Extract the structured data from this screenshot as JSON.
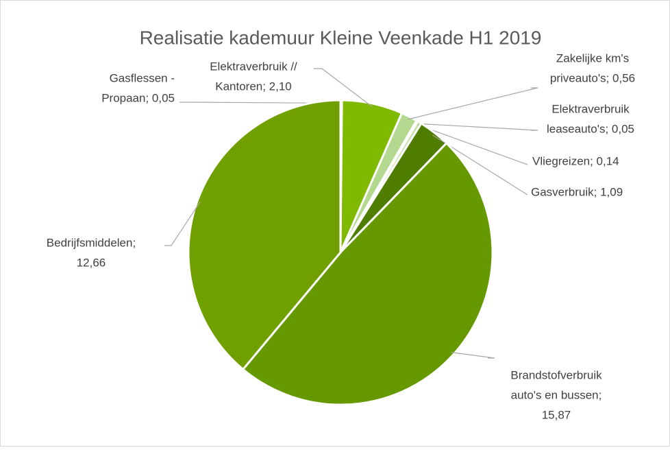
{
  "chart_data": {
    "type": "pie",
    "title": "Realisatie kademuur Kleine Veenkade H1 2019",
    "values": [
      0.05,
      2.1,
      0.56,
      0.05,
      0.14,
      1.09,
      15.87,
      12.66
    ],
    "value_labels": [
      [
        "Gasflessen -",
        "Propaan; 0,05"
      ],
      [
        "Elektraverbruik //",
        "Kantoren; 2,10"
      ],
      [
        "Zakelijke km's",
        "priveauto's; 0,56"
      ],
      [
        "Elektraverbruik",
        "leaseauto's; 0,05"
      ],
      [
        "Vliegreizen; 0,14"
      ],
      [
        "Gasverbruik; 1,09"
      ],
      [
        "Brandstofverbruik",
        "auto's en bussen;",
        "15,87"
      ],
      [
        "Bedrijfsmiddelen;",
        "12,66"
      ]
    ],
    "colors": [
      "#a9d18e",
      "#7fba00",
      "#b4d88f",
      "#dcebc9",
      "#c5e0a8",
      "#4f7d00",
      "#669900",
      "#70a000"
    ]
  }
}
